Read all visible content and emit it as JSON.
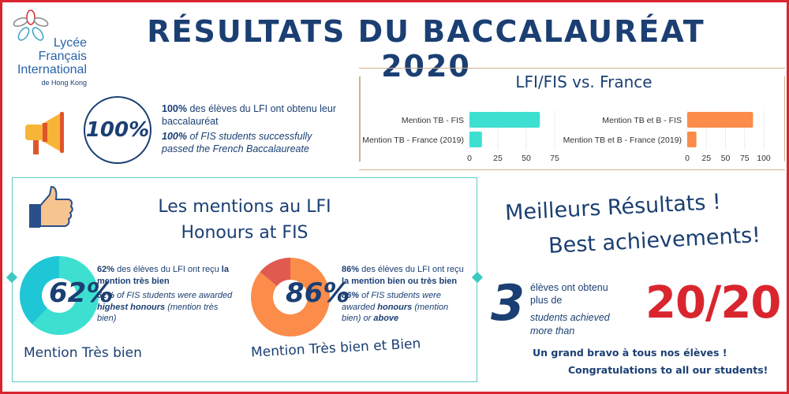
{
  "header": {
    "title": "RÉSULTATS DU BACCALAURÉAT 2020",
    "logo": {
      "line1": "Lycée",
      "line2": "Français",
      "line3": "International",
      "line4": "de Hong Kong"
    }
  },
  "pass_rate": {
    "value": "100%",
    "fr_bold": "100%",
    "fr_text": " des élèves du LFI ont obtenu leur baccalauréat",
    "en_bold": "100%",
    "en_text": " of FIS students successfully passed the French Baccalaureate"
  },
  "colors": {
    "teal": "#3de0d0",
    "orange": "#fb8c4a",
    "navy": "#1b3f73",
    "red": "#d9262e",
    "coral": "#e05a50"
  },
  "chart_data": [
    {
      "type": "bar",
      "orientation": "horizontal",
      "title": "LFI/FIS vs. France",
      "categories": [
        "Mention TB - FIS",
        "Mention TB - France (2019)"
      ],
      "values": [
        62,
        11
      ],
      "xticks": [
        "0",
        "25",
        "50",
        "75"
      ],
      "xlim": [
        0,
        75
      ],
      "color": "#3de0d0"
    },
    {
      "type": "bar",
      "orientation": "horizontal",
      "categories": [
        "Mention TB et B - FIS",
        "Mention TB et B - France (2019)"
      ],
      "values": [
        86,
        12
      ],
      "xticks": [
        "0",
        "25",
        "50",
        "75",
        "100"
      ],
      "xlim": [
        0,
        100
      ],
      "color": "#fb8c4a"
    }
  ],
  "mentions": {
    "title_fr": "Les mentions au LFI",
    "title_en": "Honours at FIS",
    "donuts": [
      {
        "value": 62,
        "label": "62%",
        "caption": "Mention Très bien",
        "fr_bold1": "62%",
        "fr_text1": " des élèves du LFI ont reçu ",
        "fr_bold2": "la mention très bien",
        "en_bold1": "62%",
        "en_text1": " of FIS students were awarded ",
        "en_bold2": "highest honours",
        "en_text2": " (mention très bien)"
      },
      {
        "value": 86,
        "label": "86%",
        "caption": "Mention Très bien et Bien",
        "fr_bold1": "86%",
        "fr_text1": " des élèves du LFI ont reçu ",
        "fr_bold2": "la mention bien ou très bien",
        "en_bold1": "86%",
        "en_text1": " of FIS students were awarded ",
        "en_bold2": "honours",
        "en_text2": " (mention bien) or ",
        "en_bold3": "above"
      }
    ]
  },
  "best": {
    "title_fr": "Meilleurs Résultats !",
    "title_en": "Best achievements!",
    "count": "3",
    "fr_text": "élèves ont obtenu plus de",
    "en_text": "students achieved more than",
    "score": "20/20",
    "bravo_fr": "Un grand bravo à tous nos élèves !",
    "bravo_en": "Congratulations to all our students!"
  }
}
